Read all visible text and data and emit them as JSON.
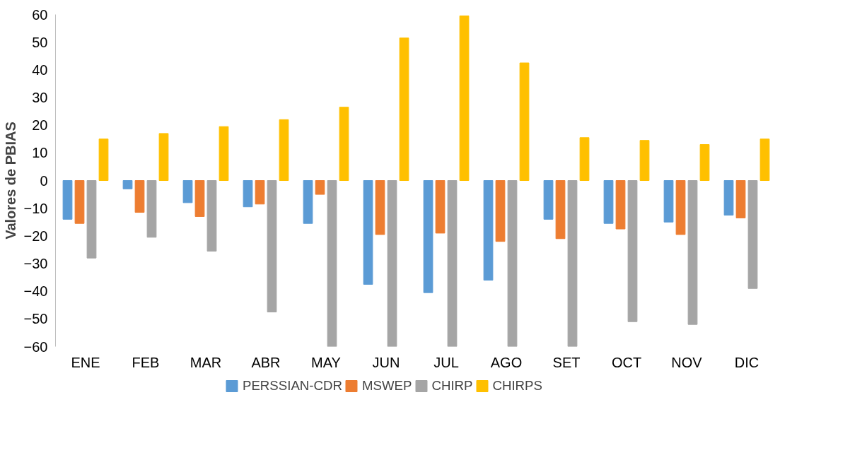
{
  "chart_data": {
    "type": "bar",
    "ylabel": "Valores de PBIAS",
    "categories": [
      "ENE",
      "FEB",
      "MAR",
      "ABR",
      "MAY",
      "JUN",
      "JUL",
      "AGO",
      "SET",
      "OCT",
      "NOV",
      "DIC"
    ],
    "series": [
      {
        "name": "PERSSIAN-CDR",
        "color": "#5b9bd5",
        "values": [
          -14,
          -3,
          -8,
          -9.5,
          -15.5,
          -37.5,
          -40.5,
          -36,
          -14,
          -15.5,
          -15,
          -12.5
        ]
      },
      {
        "name": "MSWEP",
        "color": "#ed7d31",
        "values": [
          -15.5,
          -11.5,
          -13,
          -8.5,
          -5,
          -19.5,
          -19,
          -22,
          -21,
          -17.5,
          -19.5,
          -13.5
        ]
      },
      {
        "name": "CHIRP",
        "color": "#a5a5a5",
        "values": [
          -28,
          -20.5,
          -25.5,
          -47.5,
          -60,
          -60,
          -60,
          -60,
          -60,
          -51,
          -52,
          -39
        ]
      },
      {
        "name": "CHIRPS",
        "color": "#ffc000",
        "values": [
          15,
          17,
          19.5,
          22,
          26.5,
          51.5,
          59.5,
          42.5,
          15.5,
          14.5,
          13,
          15
        ]
      }
    ],
    "ylim": [
      -60,
      60
    ],
    "yticks": [
      -60,
      -50,
      -40,
      -30,
      -20,
      -10,
      0,
      10,
      20,
      30,
      40,
      50,
      60
    ],
    "grid": false,
    "legend": "bottom"
  }
}
